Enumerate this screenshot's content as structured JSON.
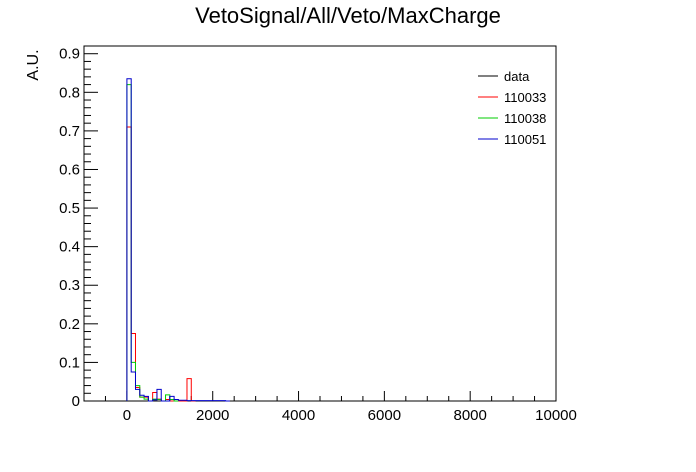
{
  "chart_data": {
    "type": "histogram",
    "title": "VetoSignal/All/Veto/MaxCharge",
    "xlabel": "",
    "ylabel": "A.U.",
    "xlim": [
      -1000,
      10000
    ],
    "ylim": [
      0,
      0.92
    ],
    "x_ticks": [
      0,
      2000,
      4000,
      6000,
      8000,
      10000
    ],
    "x_tick_labels": [
      "0",
      "2000",
      "4000",
      "6000",
      "8000",
      "10000"
    ],
    "y_ticks": [
      0,
      0.1,
      0.2,
      0.3,
      0.4,
      0.5,
      0.6,
      0.7,
      0.8,
      0.9
    ],
    "y_tick_labels": [
      "0",
      "0.1",
      "0.2",
      "0.3",
      "0.4",
      "0.5",
      "0.6",
      "0.7",
      "0.8",
      "0.9"
    ],
    "bin_width": 100,
    "legend_position": "top-right",
    "grid": false,
    "series": [
      {
        "name": "data",
        "color": "#000000",
        "bins": []
      },
      {
        "name": "110033",
        "color": "#ff0000",
        "bins": [
          [
            0,
            0.71
          ],
          [
            100,
            0.175
          ],
          [
            200,
            0.035
          ],
          [
            300,
            0.01
          ],
          [
            400,
            0.01
          ],
          [
            500,
            0.0
          ],
          [
            600,
            0.022
          ],
          [
            700,
            0.005
          ],
          [
            800,
            0.0
          ],
          [
            900,
            0.004
          ],
          [
            1000,
            0.0
          ],
          [
            1100,
            0.0
          ],
          [
            1200,
            0.0
          ],
          [
            1300,
            0.0
          ],
          [
            1400,
            0.058
          ],
          [
            1500,
            0.0
          ]
        ]
      },
      {
        "name": "110038",
        "color": "#00cc00",
        "bins": [
          [
            0,
            0.82
          ],
          [
            100,
            0.1
          ],
          [
            200,
            0.04
          ],
          [
            300,
            0.01
          ],
          [
            400,
            0.005
          ],
          [
            500,
            0.0
          ],
          [
            600,
            0.005
          ],
          [
            700,
            0.004
          ],
          [
            800,
            0.0
          ],
          [
            900,
            0.016
          ],
          [
            1000,
            0.004
          ],
          [
            1100,
            0.0
          ]
        ]
      },
      {
        "name": "110051",
        "color": "#0000cc",
        "bins": [
          [
            0,
            0.835
          ],
          [
            100,
            0.075
          ],
          [
            200,
            0.03
          ],
          [
            300,
            0.015
          ],
          [
            400,
            0.012
          ],
          [
            500,
            0.0
          ],
          [
            600,
            0.003
          ],
          [
            700,
            0.03
          ],
          [
            800,
            0.0
          ],
          [
            900,
            0.0
          ],
          [
            1000,
            0.012
          ],
          [
            1100,
            0.004
          ],
          [
            1200,
            0.002
          ],
          [
            1300,
            0.002
          ],
          [
            1400,
            0.001
          ],
          [
            1500,
            0.001
          ],
          [
            1600,
            0.001
          ],
          [
            1700,
            0.001
          ],
          [
            1800,
            0.001
          ],
          [
            1900,
            0.001
          ],
          [
            2000,
            0.001
          ],
          [
            2100,
            0.001
          ],
          [
            2200,
            0.001
          ],
          [
            2300,
            0.0
          ]
        ]
      }
    ]
  }
}
